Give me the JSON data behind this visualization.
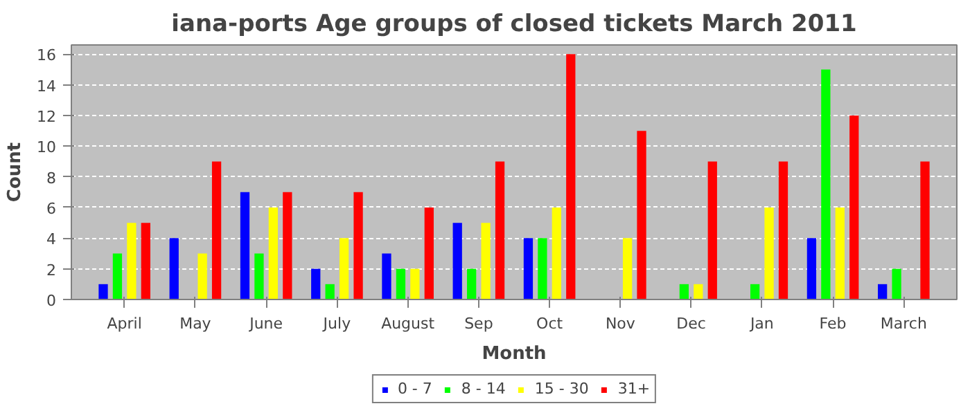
{
  "chart_data": {
    "type": "bar",
    "title": "iana-ports Age groups of closed tickets March 2011",
    "xlabel": "Month",
    "ylabel": "Count",
    "categories": [
      "April",
      "May",
      "June",
      "July",
      "August",
      "Sep",
      "Oct",
      "Nov",
      "Dec",
      "Jan",
      "Feb",
      "March"
    ],
    "series": [
      {
        "name": "0 - 7",
        "color": "#0000ff",
        "values": [
          1,
          4,
          7,
          2,
          3,
          5,
          4,
          0,
          0,
          0,
          4,
          1
        ]
      },
      {
        "name": "8 - 14",
        "color": "#00ff00",
        "values": [
          3,
          0,
          3,
          1,
          2,
          2,
          4,
          0,
          1,
          1,
          15,
          2
        ]
      },
      {
        "name": "15 - 30",
        "color": "#ffff00",
        "values": [
          5,
          3,
          6,
          4,
          2,
          5,
          6,
          4,
          1,
          6,
          6,
          0
        ]
      },
      {
        "name": "31+",
        "color": "#ff0000",
        "values": [
          5,
          9,
          7,
          7,
          6,
          9,
          16,
          11,
          9,
          9,
          12,
          9
        ]
      }
    ],
    "ylim": [
      0,
      16.6
    ],
    "yticks": [
      0,
      2,
      4,
      6,
      8,
      10,
      12,
      14,
      16
    ],
    "grid": "y",
    "legend": "bottom"
  }
}
